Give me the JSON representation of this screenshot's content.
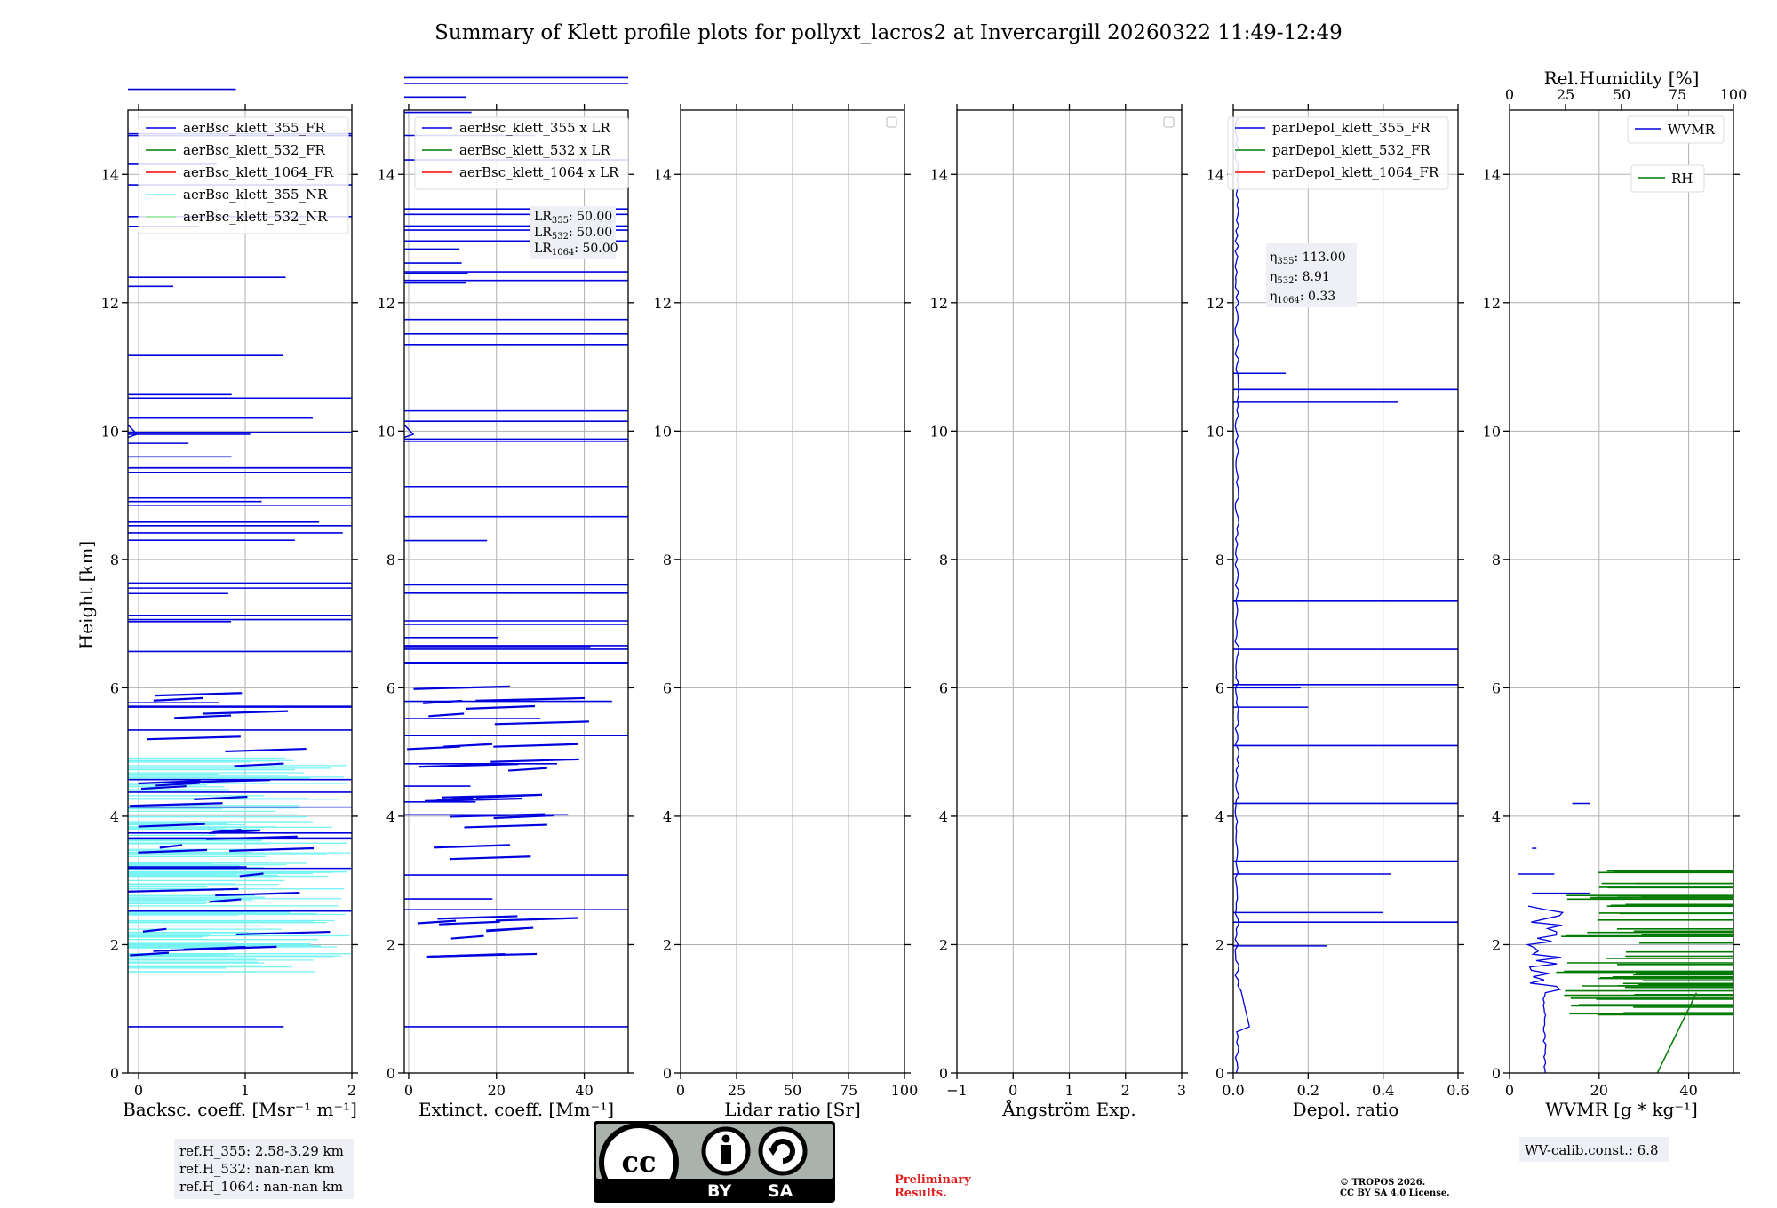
{
  "title": "Summary of Klett profile plots for pollyxt_lacros2 at Invercargill 20260322 11:49-12:49",
  "ylabel": "Height [km]",
  "colors": {
    "c355": "#0000dd",
    "c532": "#007a00",
    "c1064": "#ff0000",
    "c355nr": "#77f3f3",
    "c532nr": "#90ee90"
  },
  "chart_data": [
    {
      "type": "line",
      "xlabel": "Backsc. coeff. [Msr⁻¹ m⁻¹]",
      "xlim": [
        -0.1,
        2
      ],
      "ylim": [
        0,
        15
      ],
      "xticks": [
        0,
        1,
        2
      ],
      "yticks": [
        0,
        2,
        4,
        6,
        8,
        10,
        12,
        14
      ],
      "legend": [
        "aerBsc_klett_355_FR",
        "aerBsc_klett_532_FR",
        "aerBsc_klett_1064_FR",
        "aerBsc_klett_355_NR",
        "aerBsc_klett_532_NR"
      ],
      "annotation": [
        "ref.H_355: 2.58-3.29 km",
        "ref.H_532: nan-nan km",
        "ref.H_1064: nan-nan km"
      ]
    },
    {
      "type": "line",
      "xlabel": "Extinct. coeff. [Mm⁻¹]",
      "xlim": [
        -1,
        50
      ],
      "ylim": [
        0,
        15
      ],
      "xticks": [
        0,
        20,
        40
      ],
      "yticks": [
        0,
        2,
        4,
        6,
        8,
        10,
        12,
        14
      ],
      "legend": [
        "aerBsc_klett_355 x LR",
        "aerBsc_klett_532 x LR",
        "aerBsc_klett_1064 x LR"
      ],
      "lr_annotation": [
        "LR355: 50.00",
        "LR532: 50.00",
        "LR1064: 50.00"
      ]
    },
    {
      "type": "line",
      "xlabel": "Lidar ratio [Sr]",
      "xlim": [
        0,
        100
      ],
      "ylim": [
        0,
        15
      ],
      "xticks": [
        0,
        25,
        50,
        75,
        100
      ],
      "yticks": [
        0,
        2,
        4,
        6,
        8,
        10,
        12,
        14
      ]
    },
    {
      "type": "line",
      "xlabel": "Ångström Exp.",
      "xlim": [
        -1,
        3
      ],
      "ylim": [
        0,
        15
      ],
      "xticks": [
        -1,
        0,
        1,
        2,
        3
      ],
      "yticks": [
        0,
        2,
        4,
        6,
        8,
        10,
        12,
        14
      ]
    },
    {
      "type": "line",
      "xlabel": "Depol. ratio",
      "xlim": [
        0,
        0.6
      ],
      "ylim": [
        0,
        15
      ],
      "xticks": [
        0.0,
        0.2,
        0.4,
        0.6
      ],
      "yticks": [
        0,
        2,
        4,
        6,
        8,
        10,
        12,
        14
      ],
      "legend": [
        "parDepol_klett_355_FR",
        "parDepol_klett_532_FR",
        "parDepol_klett_1064_FR"
      ],
      "eta_annotation": [
        "η355: 113.00",
        "η532: 8.91",
        "η1064: 0.33"
      ]
    },
    {
      "type": "line",
      "xlabel": "WVMR [g * kg⁻¹]",
      "xlim": [
        0,
        50
      ],
      "ylim": [
        0,
        15
      ],
      "xticks": [
        0,
        20,
        40
      ],
      "yticks": [
        0,
        2,
        4,
        6,
        8,
        10,
        12,
        14
      ],
      "top_xlabel": "Rel.Humidity [%]",
      "top_xticks": [
        0,
        25,
        50,
        75,
        100
      ],
      "legend_wvmr": "WVMR",
      "legend_rh": "RH",
      "annotation": "WV-calib.const.: 6.8"
    }
  ],
  "footer": {
    "cc_by": "BY",
    "cc_sa": "SA",
    "preliminary": "Preliminary Results.",
    "tropos_line1": "© TROPOS 2026.",
    "tropos_line2": "CC BY SA 4.0 License."
  }
}
